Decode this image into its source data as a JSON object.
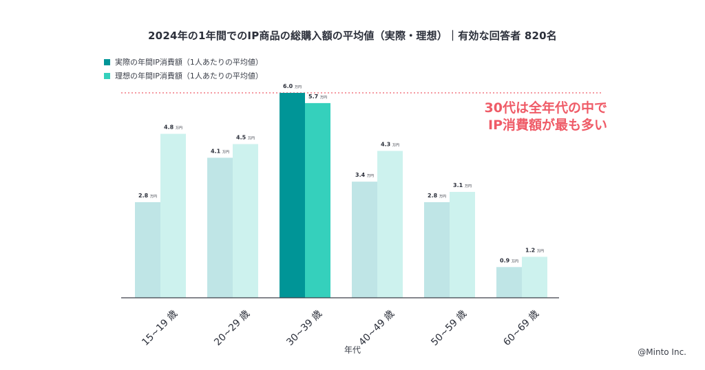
{
  "title": "2024年の1年間でのIP商品の総購入額の平均値（実際・理想）｜有効な回答者 820名",
  "callout": [
    "30代は全年代の中で",
    "IP消費額が最も多い"
  ],
  "credit": "@Minto Inc.",
  "colors": {
    "actual": "#bfe5e6",
    "ideal": "#cdf2ee",
    "actual_highlight": "#009597",
    "ideal_highlight": "#35d0bc",
    "callout": "#ef5b67",
    "dotted_line": "#ef5b67",
    "axis": "#3a3e48"
  },
  "chart_data": {
    "type": "bar",
    "title": "2024年の1年間でのIP商品の総購入額の平均値（実際・理想）｜有効な回答者 820名",
    "xlabel": "年代",
    "ylabel": "",
    "ylim": [
      0,
      6.0
    ],
    "unit": "万円",
    "categories": [
      "15~19 歳",
      "20~29 歳",
      "30~39 歳",
      "40~49 歳",
      "50~59 歳",
      "60~69 歳"
    ],
    "highlight_category": "30~39 歳",
    "reference_line": 6.0,
    "legend_position": "top-left",
    "grid": false,
    "series": [
      {
        "name": "実際の年間IP消費額（1人あたりの平均値）",
        "values": [
          2.8,
          4.1,
          6.0,
          3.4,
          2.8,
          0.9
        ],
        "labels": [
          "2.8",
          "4.1",
          "6.0",
          "3.4",
          "2.8",
          "0.9"
        ]
      },
      {
        "name": "理想の年間IP消費額（1人あたりの平均値）",
        "values": [
          4.8,
          4.5,
          5.7,
          4.3,
          3.1,
          1.2
        ],
        "labels": [
          "4.8",
          "4.5",
          "5.7",
          "4.3",
          "3.1",
          "1.2"
        ]
      }
    ]
  }
}
